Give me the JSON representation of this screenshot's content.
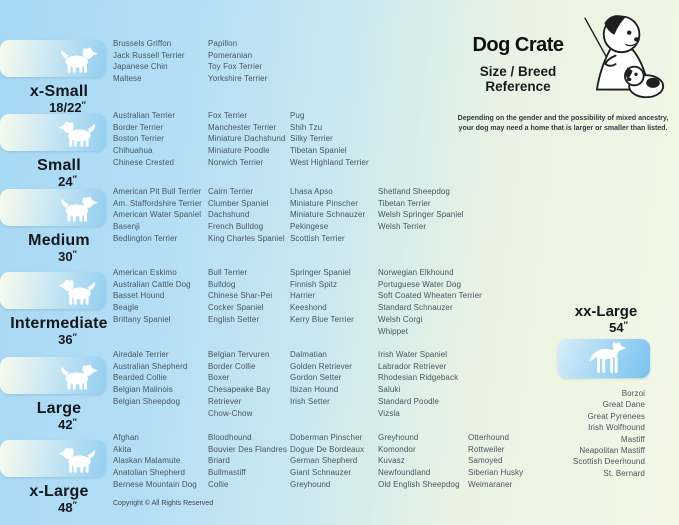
{
  "header": {
    "title": "Dog Crate",
    "subtitle_line1": "Size / Breed",
    "subtitle_line2": "Reference",
    "disclaimer_line1": "Depending on the gender and the possibility of mixed ancestry,",
    "disclaimer_line2": "your dog may need  a home that is larger or smaller than listed."
  },
  "unit_mark": "″",
  "colors": {
    "background_blue": "#a6d8f4",
    "background_green": "#f4f7e6",
    "chip_blue": "#92cef1",
    "breed_text": "#47565f",
    "label_text": "#14181c"
  },
  "sizes": [
    {
      "name": "x-Small",
      "dimension": "18/22",
      "columns": [
        [
          "Brussels Griffon",
          "Jack Russell Terrier",
          "Japanese Chin",
          "Maltese"
        ],
        [
          "Papillon",
          "Pomeranian",
          "Toy Fox Terrier",
          "Yorkshire Terrier"
        ]
      ]
    },
    {
      "name": "Small",
      "dimension": "24",
      "columns": [
        [
          "Australian Terrier",
          "Border Terrier",
          "Boston Terrier",
          "Chihuahua",
          "Chinese Crested"
        ],
        [
          "Fox Terrier",
          "Manchester Terrier",
          "Miniature Dachshund",
          "Miniature Poodle",
          "Norwich Terrier"
        ],
        [
          "Pug",
          "Shih Tzu",
          "Silky Terrier",
          "Tibetan Spaniel",
          "West Highland Terrier"
        ]
      ]
    },
    {
      "name": "Medium",
      "dimension": "30",
      "columns": [
        [
          "American Pit Bull Terrier",
          "Am. Staffordshire Terrier",
          "American Water Spaniel",
          "Basenji",
          "Bedlington Terrier"
        ],
        [
          "Cairn Terrier",
          "Clumber Spaniel",
          "Dachshund",
          "French Bulldog",
          "King Charles Spaniel"
        ],
        [
          "Lhasa Apso",
          "Miniature Pinscher",
          "Miniature Schnauzer",
          "Pekingese",
          "Scottish Terrier"
        ],
        [
          "Shetland Sheepdog",
          "Tibetan Terrier",
          "Welsh Springer Spaniel",
          "Welsh Terrier"
        ]
      ]
    },
    {
      "name": "Intermediate",
      "dimension": "36",
      "columns": [
        [
          "American Eskimo",
          "Australian Cattle Dog",
          "Basset Hound",
          "Beagle",
          "Brittany Spaniel"
        ],
        [
          "Bull Terrier",
          "Bulldog",
          "Chinese Shar-Pei",
          "Cocker Spaniel",
          "English Setter"
        ],
        [
          "Springer Spaniel",
          "Finnish Spitz",
          "Harrier",
          "Keeshond",
          "Kerry Blue Terrier"
        ],
        [
          "Norwegian Elkhound",
          "Portuguese Water Dog",
          "Soft Coated Wheaten Terrier",
          "Standard Schnauzer",
          "Welsh Corgi",
          "Whippet"
        ]
      ]
    },
    {
      "name": "Large",
      "dimension": "42",
      "columns": [
        [
          "Airedale Terrier",
          "Australian Shepherd",
          "Bearded Collie",
          "Belgian Malinois",
          "Belgian Sheepdog"
        ],
        [
          "Belgian Tervuren",
          "Border Collie",
          "Boxer",
          "Chesapeake Bay\nRetriever",
          "Chow-Chow"
        ],
        [
          "Dalmatian",
          "Golden Retriever",
          "Gordon Setter",
          "Ibizan Hound",
          "Irish Setter"
        ],
        [
          "Irish Water Spaniel",
          "Labrador Retriever",
          "Rhodesian Ridgeback",
          "Saluki",
          "Standard Poodle",
          "Vizsla"
        ]
      ]
    },
    {
      "name": "x-Large",
      "dimension": "48",
      "columns": [
        [
          "Afghan",
          "Akita",
          "Alaskan Malamute",
          "Anatolian Shepherd",
          "Bernese Mountain Dog"
        ],
        [
          "Bloodhound",
          "Bouvier Des Flandres",
          "Briard",
          "Bullmastiff",
          "Collie"
        ],
        [
          "Doberman Pinscher",
          "Dogue De Bordeaux",
          "German Shepherd",
          "Giant Schnauzer",
          "Greyhound"
        ],
        [
          "Greyhound",
          "Komondor",
          "Kuvasz",
          "Newfoundland",
          "Old English Sheepdog"
        ],
        [
          "Otterhound",
          "Rottweiler",
          "Samoyed",
          "Siberian Husky",
          "Weimaraner"
        ]
      ]
    },
    {
      "name": "xx-Large",
      "dimension": "54",
      "breeds": [
        "Borzoi",
        "Great Dane",
        "Great Pyrenees",
        "Irish Wolfhound",
        "Mastiff",
        "Neapolitan Mastiff",
        "Scottish Deerhound",
        "St. Bernard"
      ]
    }
  ],
  "footer": {
    "copyright": "Copyright © All Rights Reserved"
  }
}
